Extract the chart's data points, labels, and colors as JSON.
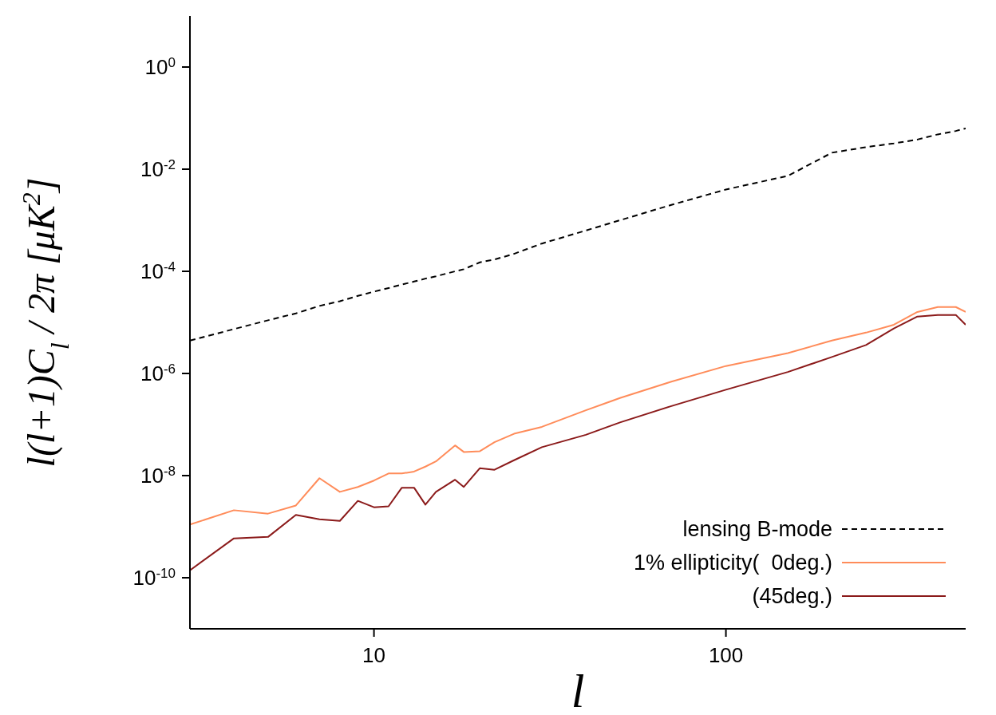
{
  "chart_data": {
    "type": "line",
    "xlabel": "l",
    "ylabel": "l(l+1)C$_{l}$ / 2π [μK$^{2}$]",
    "x": [
      3,
      4,
      5,
      6,
      7,
      8,
      9,
      10,
      11,
      12,
      13,
      14,
      15,
      17,
      18,
      20,
      22,
      25,
      30,
      40,
      50,
      70,
      100,
      150,
      200,
      250,
      300,
      350,
      400,
      450,
      480
    ],
    "series": [
      {
        "name": "lensing B-mode",
        "color": "#000000",
        "line_style": "dashed",
        "values": [
          4.4e-06,
          7.4e-06,
          1.1e-05,
          1.5e-05,
          2.1e-05,
          2.6e-05,
          3.3e-05,
          4e-05,
          4.7e-05,
          5.5e-05,
          6.3e-05,
          7.2e-05,
          8e-05,
          0.0001,
          0.00011,
          0.00015,
          0.00017,
          0.00022,
          0.00035,
          0.00063,
          0.001,
          0.002,
          0.004,
          0.0074,
          0.021,
          0.027,
          0.032,
          0.038,
          0.048,
          0.056,
          0.063
        ]
      },
      {
        "name": "1% ellipticity(  0deg.)",
        "color": "#ff8c5a",
        "line_style": "solid",
        "values": [
          1.1e-09,
          2.1e-09,
          1.8e-09,
          2.6e-09,
          8.9e-09,
          4.8e-09,
          6e-09,
          8e-09,
          1.1e-08,
          1.1e-08,
          1.2e-08,
          1.5e-08,
          1.9e-08,
          3.9e-08,
          2.9e-08,
          3e-08,
          4.5e-08,
          6.6e-08,
          9e-08,
          1.9e-07,
          3.3e-07,
          6.9e-07,
          1.4e-06,
          2.5e-06,
          4.4e-06,
          6.3e-06,
          9e-06,
          1.6e-05,
          2e-05,
          2e-05,
          1.6e-05
        ]
      },
      {
        "name": "(45deg.)",
        "color": "#8b1a1a",
        "line_style": "solid",
        "values": [
          1.4e-10,
          5.9e-10,
          6.3e-10,
          1.7e-09,
          1.4e-09,
          1.3e-09,
          3.2e-09,
          2.4e-09,
          2.5e-09,
          5.8e-09,
          5.8e-09,
          2.7e-09,
          4.8e-09,
          8.3e-09,
          6e-09,
          1.4e-08,
          1.3e-08,
          2e-08,
          3.6e-08,
          6.3e-08,
          1.1e-07,
          2.3e-07,
          4.8e-07,
          1.07e-06,
          2.1e-06,
          3.6e-06,
          7.6e-06,
          1.3e-05,
          1.4e-05,
          1.4e-05,
          9e-06
        ]
      }
    ],
    "log": "xy",
    "xlim": [
      3,
      480
    ],
    "xticks": [
      10,
      100
    ],
    "ylim": [
      1e-11,
      10
    ],
    "yticks": [
      {
        "value": 1,
        "label": "10$^{0}$"
      },
      {
        "value": 0.01,
        "label": "10$^{-2}$"
      },
      {
        "value": 0.0001,
        "label": "10$^{-4}$"
      },
      {
        "value": 1e-06,
        "label": "10$^{-6}$"
      },
      {
        "value": 1e-08,
        "label": "10$^{-8}$"
      },
      {
        "value": 1e-10,
        "label": "10$^{-10}$"
      }
    ],
    "legend": "bottom right",
    "marker": "none"
  }
}
